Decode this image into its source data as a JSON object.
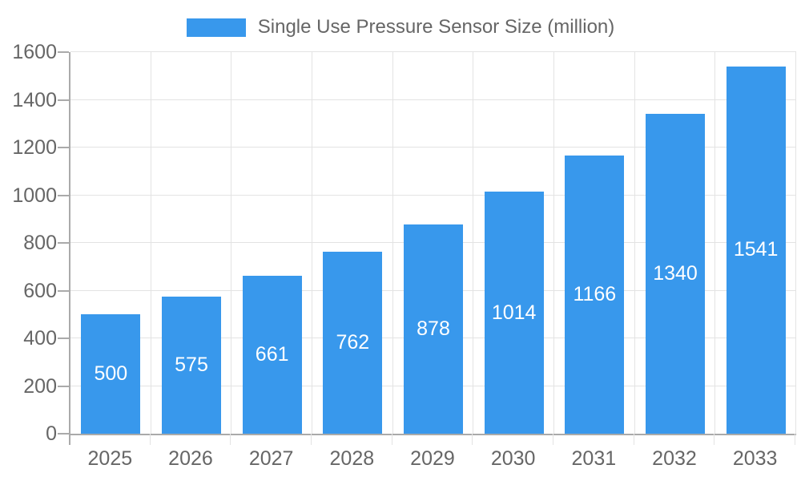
{
  "chart_data": {
    "type": "bar",
    "title": "Single Use Pressure Sensor Size (million)",
    "legend": [
      "Single Use Pressure Sensor Size (million)"
    ],
    "legend_position": "top",
    "categories": [
      "2025",
      "2026",
      "2027",
      "2028",
      "2029",
      "2030",
      "2031",
      "2032",
      "2033"
    ],
    "values": [
      500,
      575,
      661,
      762,
      878,
      1014,
      1166,
      1340,
      1541
    ],
    "value_labels_shown_inside_bars": true,
    "xlabel": "",
    "ylabel": "",
    "ylim": [
      0,
      1600
    ],
    "yticks": [
      0,
      200,
      400,
      600,
      800,
      1000,
      1200,
      1400,
      1600
    ],
    "grid": true,
    "colors": {
      "bar": "#3898ec",
      "value_label": "#ffffff",
      "grid_line": "#e3e3e3",
      "axis_line": "#aaaaaa",
      "tick_text": "#666666",
      "legend_text": "#666666",
      "background": "#ffffff"
    }
  }
}
